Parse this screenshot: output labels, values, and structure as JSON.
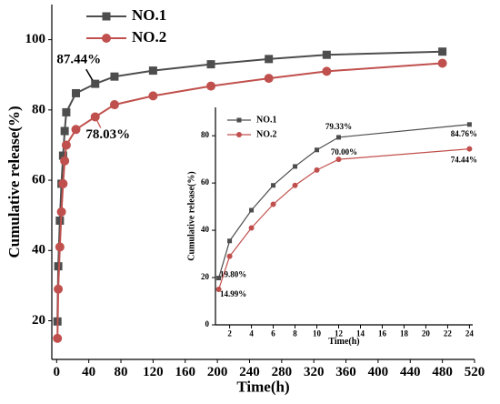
{
  "chart_data": [
    {
      "type": "line",
      "x_label": "Time(h)",
      "y_label": "Cumulative release(%)",
      "x": [
        1,
        2,
        4,
        6,
        8,
        10,
        12,
        24,
        48,
        72,
        120,
        192,
        264,
        336,
        480
      ],
      "xlim": [
        -6,
        520
      ],
      "xticks": [
        0,
        40,
        80,
        120,
        160,
        200,
        240,
        280,
        320,
        360,
        400,
        440,
        480,
        520
      ],
      "ylim": [
        9,
        110
      ],
      "yticks": [
        20,
        40,
        60,
        80,
        100
      ],
      "legend": "upper left",
      "series": [
        {
          "name": "NO.1",
          "color": "#4d4d4d",
          "marker": "square",
          "values": [
            19.8,
            35.5,
            48.5,
            59,
            67,
            74,
            79.33,
            84.76,
            87.44,
            89.5,
            91.2,
            93,
            94.5,
            95.7,
            96.6
          ],
          "value_labels": [
            null,
            null,
            null,
            null,
            null,
            null,
            null,
            null,
            "87.44%",
            null,
            null,
            null,
            null,
            null,
            null
          ]
        },
        {
          "name": "NO.2",
          "color": "#c0504d",
          "marker": "circle",
          "values": [
            14.99,
            29,
            41,
            51,
            59,
            65.5,
            70,
            74.44,
            78.03,
            81.5,
            84,
            86.8,
            89,
            91,
            93.3
          ],
          "value_labels": [
            null,
            null,
            null,
            null,
            null,
            null,
            null,
            null,
            "78.03%",
            null,
            null,
            null,
            null,
            null,
            null
          ]
        }
      ]
    },
    {
      "type": "line",
      "x_label": "Time(h)",
      "y_label": "Cumulative release(%)",
      "x": [
        1,
        2,
        4,
        6,
        8,
        10,
        12,
        24
      ],
      "xlim": [
        0.7,
        24.3
      ],
      "xticks": [
        2,
        4,
        6,
        8,
        10,
        12,
        14,
        16,
        18,
        20,
        22,
        24
      ],
      "ylim": [
        0,
        92
      ],
      "yticks": [
        0,
        20,
        40,
        60,
        80
      ],
      "legend": "upper left",
      "series": [
        {
          "name": "NO.1",
          "color": "#4d4d4d",
          "marker": "square",
          "values": [
            19.8,
            35.5,
            48.5,
            59,
            67,
            74,
            79.33,
            84.76
          ],
          "value_labels": [
            "19.80%",
            null,
            null,
            null,
            null,
            null,
            "79.33%",
            "84.76%"
          ]
        },
        {
          "name": "NO.2",
          "color": "#c0504d",
          "marker": "circle",
          "values": [
            14.99,
            29,
            41,
            51,
            59,
            65.5,
            70,
            74.44
          ],
          "value_labels": [
            "14.99%",
            null,
            null,
            null,
            null,
            null,
            "70.00%",
            "74.44%"
          ]
        }
      ]
    }
  ]
}
